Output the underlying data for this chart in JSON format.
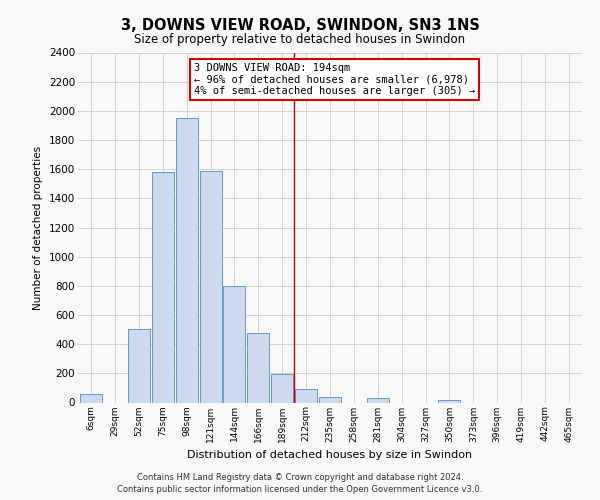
{
  "title": "3, DOWNS VIEW ROAD, SWINDON, SN3 1NS",
  "subtitle": "Size of property relative to detached houses in Swindon",
  "xlabel": "Distribution of detached houses by size in Swindon",
  "ylabel": "Number of detached properties",
  "bin_labels": [
    "6sqm",
    "29sqm",
    "52sqm",
    "75sqm",
    "98sqm",
    "121sqm",
    "144sqm",
    "166sqm",
    "189sqm",
    "212sqm",
    "235sqm",
    "258sqm",
    "281sqm",
    "304sqm",
    "327sqm",
    "350sqm",
    "373sqm",
    "396sqm",
    "419sqm",
    "442sqm",
    "465sqm"
  ],
  "bar_heights": [
    55,
    0,
    505,
    1580,
    1950,
    1590,
    800,
    480,
    195,
    90,
    35,
    0,
    30,
    0,
    0,
    20,
    0,
    0,
    0,
    0,
    0
  ],
  "bar_color": "#ccd9ee",
  "bar_edge_color": "#6699cc",
  "vline_x": 8.5,
  "vline_color": "#cc0000",
  "annotation_line1": "3 DOWNS VIEW ROAD: 194sqm",
  "annotation_line2": "← 96% of detached houses are smaller (6,978)",
  "annotation_line3": "4% of semi-detached houses are larger (305) →",
  "annotation_box_color": "#ffffff",
  "annotation_box_edge_color": "#cc0000",
  "ylim": [
    0,
    2400
  ],
  "yticks": [
    0,
    200,
    400,
    600,
    800,
    1000,
    1200,
    1400,
    1600,
    1800,
    2000,
    2200,
    2400
  ],
  "footer_line1": "Contains HM Land Registry data © Crown copyright and database right 2024.",
  "footer_line2": "Contains public sector information licensed under the Open Government Licence v3.0.",
  "background_color": "#f8f8f8",
  "grid_color": "#cccccc"
}
